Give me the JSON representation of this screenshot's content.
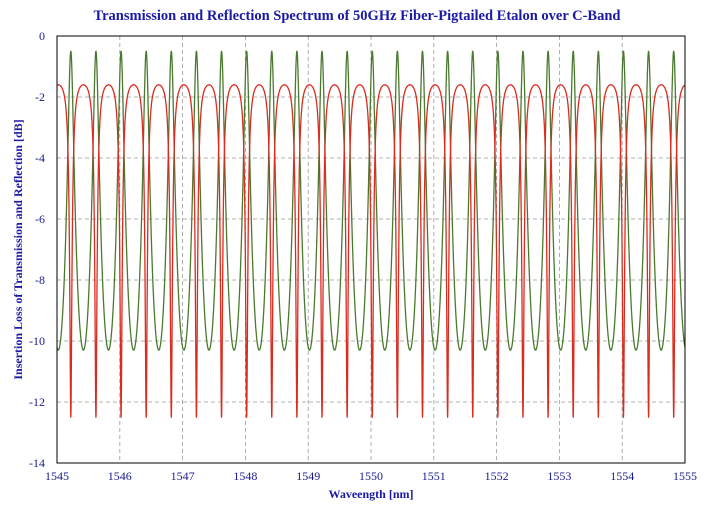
{
  "chart_data": {
    "type": "line",
    "title": "Transmission and Reflection Spectrum of 50GHz Fiber-Pigtailed Etalon over C-Band",
    "xlabel": "Waveength [nm]",
    "ylabel": "Insertion Loss of Transmission and Reflection [dB]",
    "xlim": [
      1545,
      1555
    ],
    "ylim": [
      -14,
      0
    ],
    "x_ticks": [
      1545,
      1546,
      1547,
      1548,
      1549,
      1550,
      1551,
      1552,
      1553,
      1554,
      1555
    ],
    "y_ticks": [
      0,
      -2,
      -4,
      -6,
      -8,
      -10,
      -12,
      -14
    ],
    "grid": true,
    "legend": "none",
    "series": [
      {
        "role": "transmission",
        "color": "#4a7a2e",
        "x": [
          1545.0,
          1545.2,
          1545.4,
          1545.6,
          1545.8,
          1546.0,
          1546.2,
          1546.4,
          1546.6,
          1546.8,
          1547.0,
          1547.2,
          1547.4,
          1547.6,
          1547.8,
          1548.0,
          1548.2,
          1548.4,
          1548.6,
          1548.8,
          1549.0,
          1549.2,
          1549.4,
          1549.6,
          1549.8,
          1550.0,
          1550.2,
          1550.4,
          1550.6,
          1550.8,
          1551.0,
          1551.2,
          1551.4,
          1551.6,
          1551.8,
          1552.0,
          1552.2,
          1552.4,
          1552.6,
          1552.8,
          1553.0,
          1553.2,
          1553.4,
          1553.6,
          1553.8,
          1554.0,
          1554.2,
          1554.4,
          1554.6,
          1554.8,
          1555.0
        ],
        "peak_dB": -0.5,
        "notch_dB": -10.3
      },
      {
        "role": "reflection",
        "color": "#d92b1f",
        "x": [
          1545.0,
          1545.2,
          1545.4,
          1545.6,
          1545.8,
          1546.0,
          1546.2,
          1546.4,
          1546.6,
          1546.8,
          1547.0,
          1547.2,
          1547.4,
          1547.6,
          1547.8,
          1548.0,
          1548.2,
          1548.4,
          1548.6,
          1548.8,
          1549.0,
          1549.2,
          1549.4,
          1549.6,
          1549.8,
          1550.0,
          1550.2,
          1550.4,
          1550.6,
          1550.8,
          1551.0,
          1551.2,
          1551.4,
          1551.6,
          1551.8,
          1552.0,
          1552.2,
          1552.4,
          1552.6,
          1552.8,
          1553.0,
          1553.2,
          1553.4,
          1553.6,
          1553.8,
          1554.0,
          1554.2,
          1554.4,
          1554.6,
          1554.8,
          1555.0
        ],
        "peak_dB": -1.6,
        "notch_dB": -12.5
      }
    ],
    "period_nm": 0.4,
    "transmission_center_nm": 1545.22
  },
  "colors": {
    "background": "#ffffff",
    "title": "#1a1aa6",
    "axis_text": "#1a1a8c",
    "grid": "#9a9a9a",
    "frame": "#000000"
  }
}
